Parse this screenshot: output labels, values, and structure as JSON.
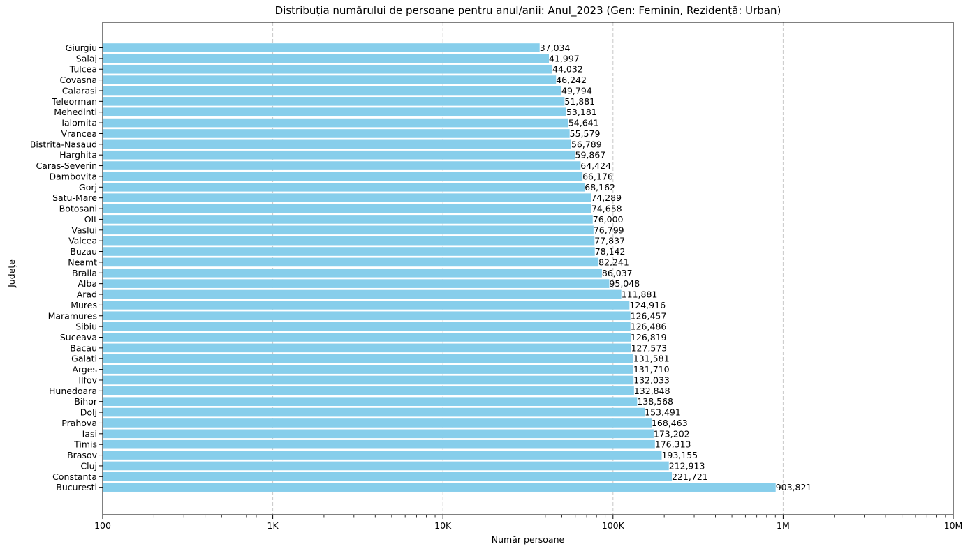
{
  "chart_data": {
    "type": "bar",
    "orientation": "horizontal",
    "title": "Distribuția numărului de persoane pentru anul/anii: Anul_2023 (Gen: Feminin, Rezidență: Urban)",
    "xlabel": "Număr persoane",
    "ylabel": "Județe",
    "x_scale": "log",
    "xlim": [
      100,
      10000000
    ],
    "x_ticks": [
      100,
      1000,
      10000,
      100000,
      1000000,
      10000000
    ],
    "x_tick_labels": [
      "100",
      "1K",
      "10K",
      "100K",
      "1M",
      "10M"
    ],
    "grid": "vertical dashed at major ticks",
    "bar_color": "#87ceeb",
    "categories": [
      "Giurgiu",
      "Salaj",
      "Tulcea",
      "Covasna",
      "Calarasi",
      "Teleorman",
      "Mehedinti",
      "Ialomita",
      "Vrancea",
      "Bistrita-Nasaud",
      "Harghita",
      "Caras-Severin",
      "Dambovita",
      "Gorj",
      "Satu-Mare",
      "Botosani",
      "Olt",
      "Vaslui",
      "Valcea",
      "Buzau",
      "Neamt",
      "Braila",
      "Alba",
      "Arad",
      "Mures",
      "Maramures",
      "Sibiu",
      "Suceava",
      "Bacau",
      "Galati",
      "Arges",
      "Ilfov",
      "Hunedoara",
      "Bihor",
      "Dolj",
      "Prahova",
      "Iasi",
      "Timis",
      "Brasov",
      "Cluj",
      "Constanta",
      "Bucuresti"
    ],
    "values": [
      37034,
      41997,
      44032,
      46242,
      49794,
      51881,
      53181,
      54641,
      55579,
      56789,
      59867,
      64424,
      66176,
      68162,
      74289,
      74658,
      76000,
      76799,
      77837,
      78142,
      82241,
      86037,
      95048,
      111881,
      124916,
      126457,
      126486,
      126819,
      127573,
      131581,
      131710,
      132033,
      132848,
      138568,
      153491,
      168463,
      173202,
      176313,
      193155,
      212913,
      221721,
      903821
    ],
    "value_labels": [
      "37,034",
      "41,997",
      "44,032",
      "46,242",
      "49,794",
      "51,881",
      "53,181",
      "54,641",
      "55,579",
      "56,789",
      "59,867",
      "64,424",
      "66,176",
      "68,162",
      "74,289",
      "74,658",
      "76,000",
      "76,799",
      "77,837",
      "78,142",
      "82,241",
      "86,037",
      "95,048",
      "111,881",
      "124,916",
      "126,457",
      "126,486",
      "126,819",
      "127,573",
      "131,581",
      "131,710",
      "132,033",
      "132,848",
      "138,568",
      "153,491",
      "168,463",
      "173,202",
      "176,313",
      "193,155",
      "212,913",
      "221,721",
      "903,821"
    ]
  }
}
